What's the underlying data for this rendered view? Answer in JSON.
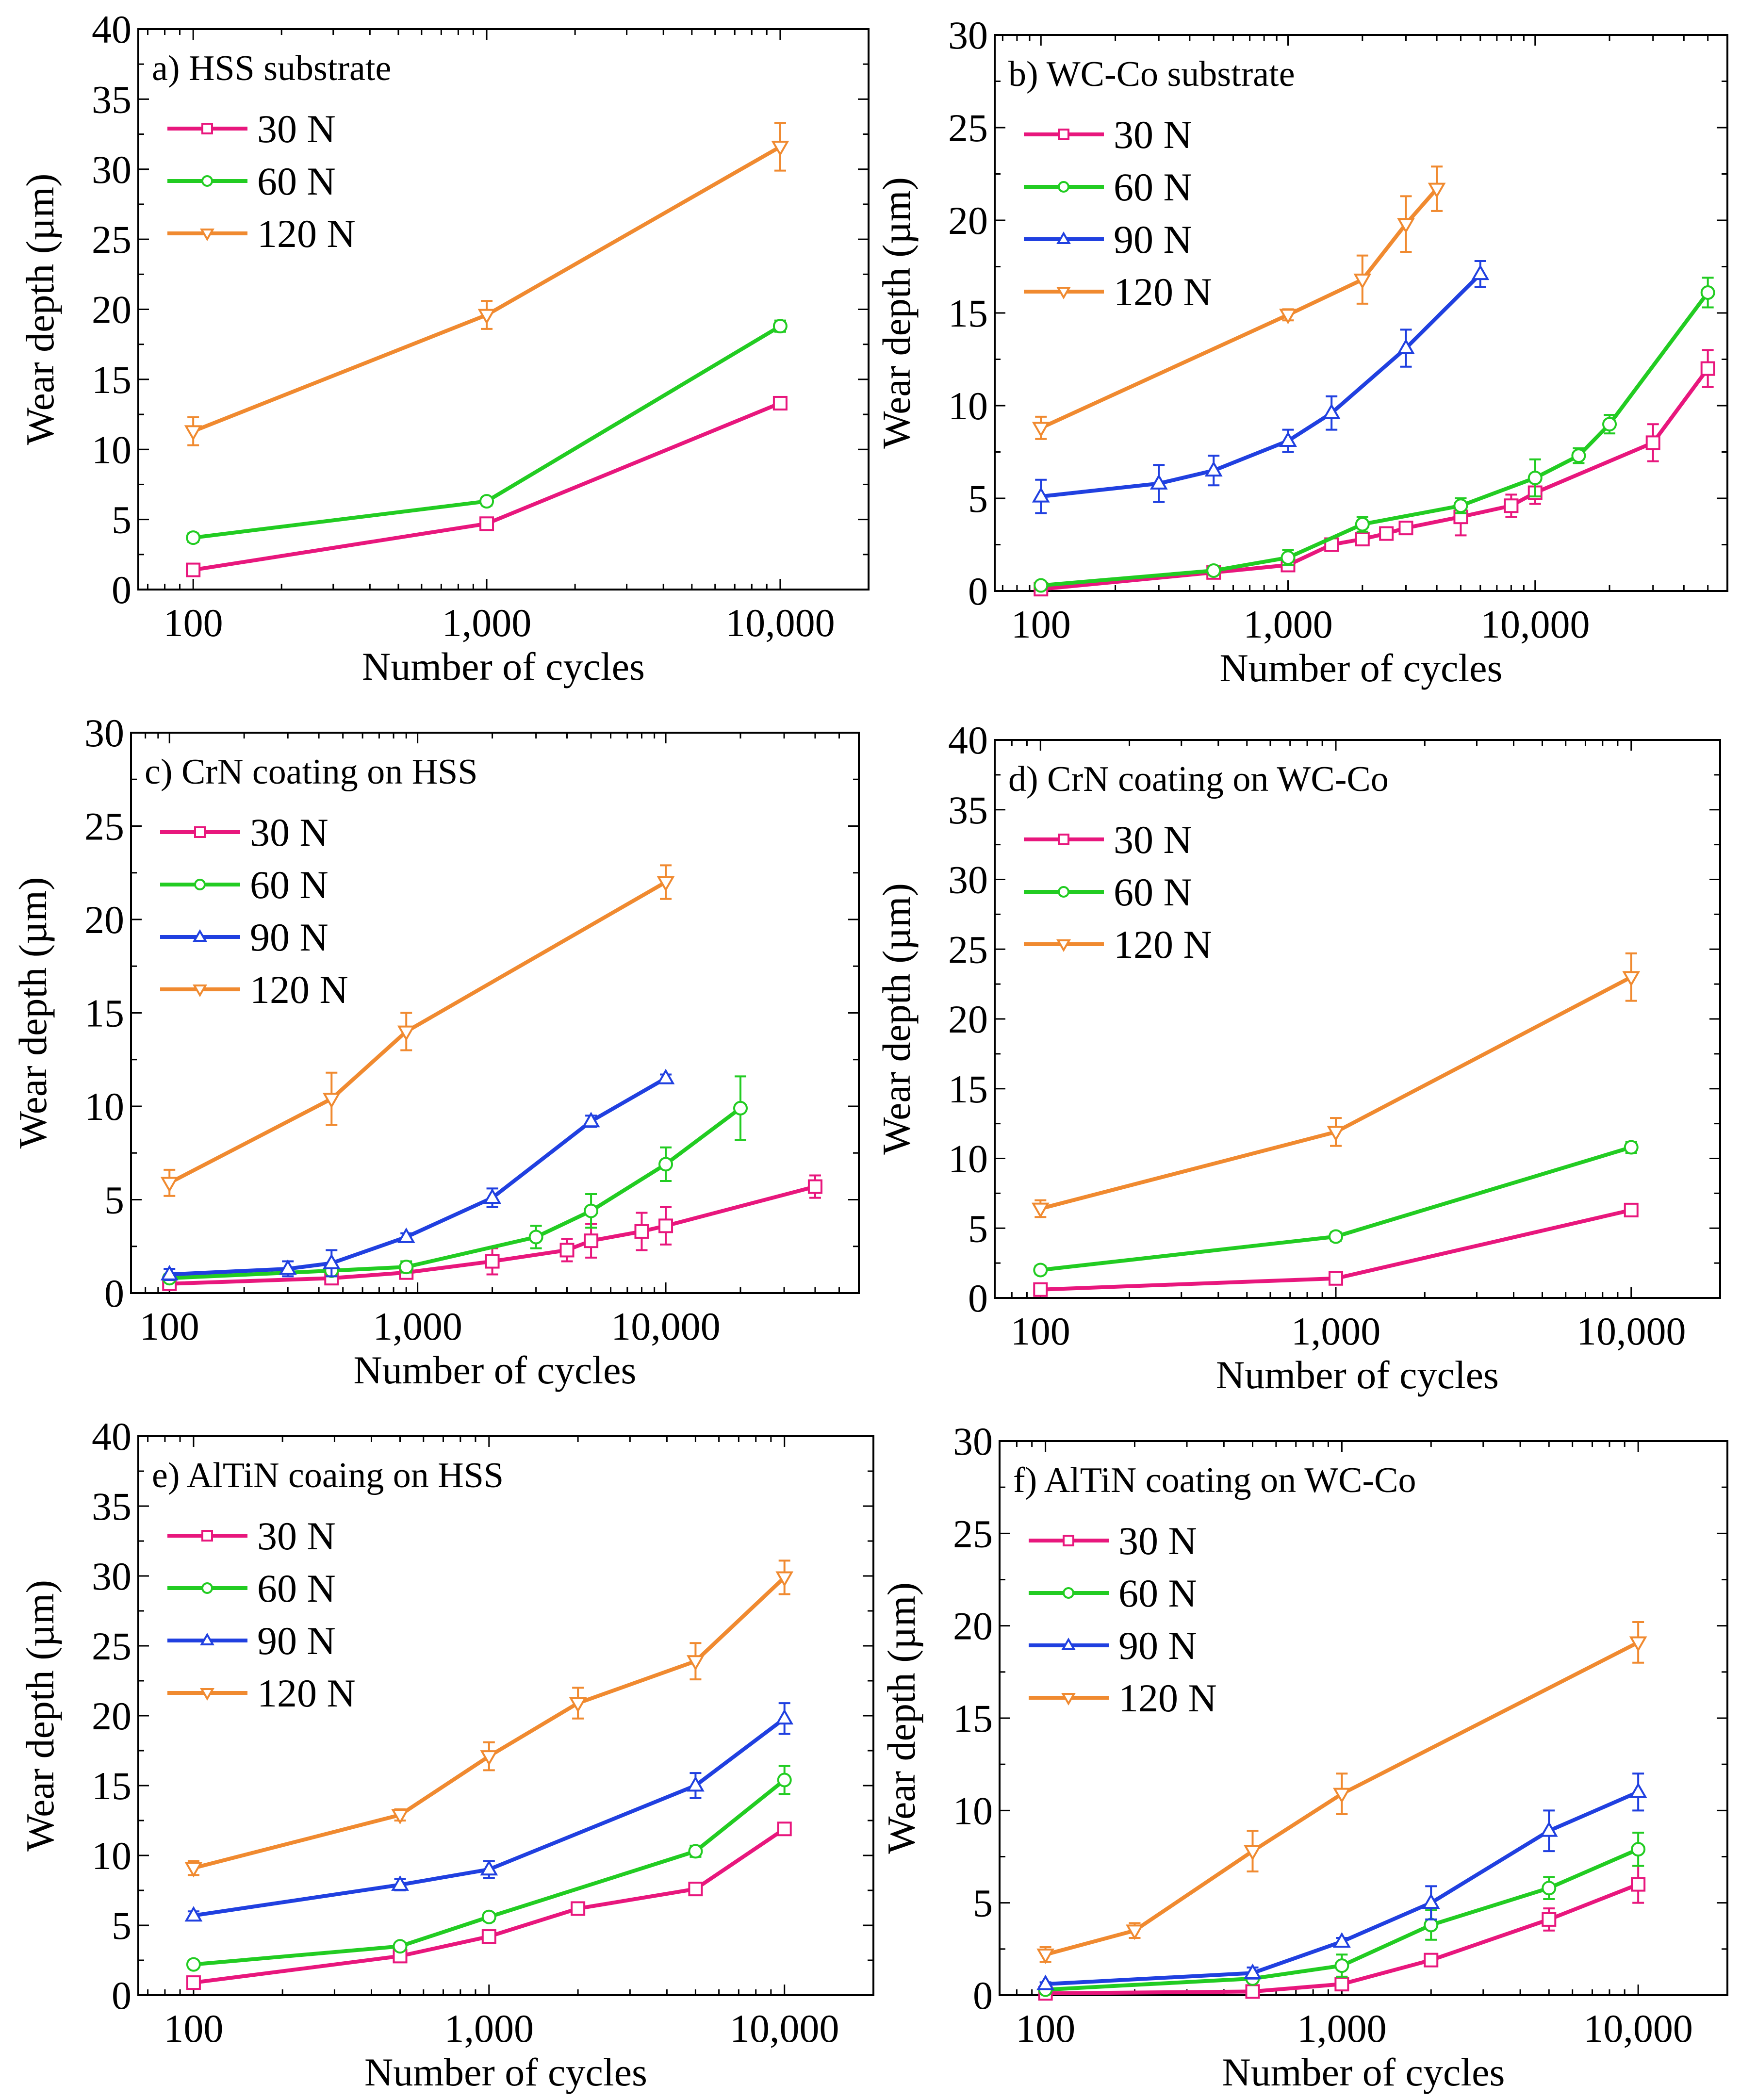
{
  "chart_data": [
    {
      "type": "line",
      "title": "a) HSS substrate",
      "xlabel": "Number of cycles",
      "ylabel": "Wear depth (µm)",
      "xscale": "log",
      "xlim": [
        65,
        20000
      ],
      "ylim": [
        0,
        40
      ],
      "xticks": [
        100,
        1000,
        10000
      ],
      "xtick_labels": [
        "100",
        "1,000",
        "10,000"
      ],
      "yticks": [
        0,
        5,
        10,
        15,
        20,
        25,
        30,
        35,
        40
      ],
      "legend_position": "top-left",
      "series": [
        {
          "name": "30 N",
          "color": "#e8177d",
          "marker": "square",
          "x": [
            100,
            1000,
            10000
          ],
          "y": [
            1.4,
            4.7,
            13.3
          ],
          "err": [
            0.3,
            0.3,
            0.3
          ]
        },
        {
          "name": "60 N",
          "color": "#22cc22",
          "marker": "circle",
          "x": [
            100,
            1000,
            10000
          ],
          "y": [
            3.7,
            6.3,
            18.8
          ],
          "err": [
            0.3,
            0.3,
            0.4
          ]
        },
        {
          "name": "120 N",
          "color": "#f08a30",
          "marker": "triangle-down",
          "x": [
            100,
            1000,
            10000
          ],
          "y": [
            11.3,
            19.6,
            31.6
          ],
          "err": [
            1.0,
            1.0,
            1.7
          ]
        }
      ]
    },
    {
      "type": "line",
      "title": "b) WC-Co substrate",
      "xlabel": "Number of cycles",
      "ylabel": "Wear depth (µm)",
      "xscale": "log",
      "xlim": [
        65,
        60000
      ],
      "ylim": [
        0,
        30
      ],
      "xticks": [
        100,
        1000,
        10000
      ],
      "xtick_labels": [
        "100",
        "1,000",
        "10,000"
      ],
      "yticks": [
        0,
        5,
        10,
        15,
        20,
        25,
        30
      ],
      "legend_position": "top-left",
      "series": [
        {
          "name": "30 N",
          "color": "#e8177d",
          "marker": "square",
          "x": [
            100,
            500,
            1000,
            1500,
            2000,
            2500,
            3000,
            5000,
            8000,
            10000,
            30000,
            50000
          ],
          "y": [
            0.1,
            1.0,
            1.4,
            2.5,
            2.8,
            3.1,
            3.4,
            4.0,
            4.6,
            5.3,
            8.0,
            12.0
          ],
          "err": [
            0.1,
            0.1,
            0.2,
            0.2,
            0.2,
            0.2,
            0.2,
            1.0,
            0.6,
            0.6,
            1.0,
            1.0
          ]
        },
        {
          "name": "60 N",
          "color": "#22cc22",
          "marker": "circle",
          "x": [
            100,
            500,
            1000,
            2000,
            5000,
            10000,
            15000,
            20000,
            50000
          ],
          "y": [
            0.3,
            1.1,
            1.8,
            3.6,
            4.6,
            6.1,
            7.3,
            9.0,
            16.1
          ],
          "err": [
            0.1,
            0.1,
            0.4,
            0.4,
            0.4,
            1.0,
            0.4,
            0.5,
            0.8
          ]
        },
        {
          "name": "90 N",
          "color": "#2040e0",
          "marker": "triangle-up",
          "x": [
            100,
            300,
            500,
            1000,
            1500,
            3000,
            6000
          ],
          "y": [
            5.1,
            5.8,
            6.5,
            8.1,
            9.6,
            13.1,
            17.1
          ],
          "err": [
            0.9,
            1.0,
            0.8,
            0.6,
            0.9,
            1.0,
            0.7
          ]
        },
        {
          "name": "120 N",
          "color": "#f08a30",
          "marker": "triangle-down",
          "x": [
            100,
            1000,
            2000,
            3000,
            4000
          ],
          "y": [
            8.8,
            14.9,
            16.8,
            19.8,
            21.7
          ],
          "err": [
            0.6,
            0.3,
            1.3,
            1.5,
            1.2
          ]
        }
      ]
    },
    {
      "type": "line",
      "title": "c) CrN coating on HSS",
      "xlabel": "Number of cycles",
      "ylabel": "Wear depth (µm)",
      "xscale": "log",
      "xlim": [
        70,
        60000
      ],
      "ylim": [
        0,
        30
      ],
      "xticks": [
        100,
        1000,
        10000
      ],
      "xtick_labels": [
        "100",
        "1,000",
        "10,000"
      ],
      "yticks": [
        0,
        5,
        10,
        15,
        20,
        25,
        30
      ],
      "legend_position": "top-left",
      "series": [
        {
          "name": "30 N",
          "color": "#e8177d",
          "marker": "square",
          "x": [
            100,
            450,
            900,
            2000,
            4000,
            5000,
            8000,
            10000,
            40000
          ],
          "y": [
            0.5,
            0.8,
            1.1,
            1.7,
            2.3,
            2.8,
            3.3,
            3.6,
            5.7
          ],
          "err": [
            0.2,
            0.3,
            0.3,
            0.7,
            0.6,
            0.9,
            1.0,
            1.0,
            0.6
          ]
        },
        {
          "name": "60 N",
          "color": "#22cc22",
          "marker": "circle",
          "x": [
            100,
            450,
            900,
            3000,
            5000,
            10000,
            20000
          ],
          "y": [
            0.8,
            1.2,
            1.4,
            3.0,
            4.4,
            6.9,
            9.9
          ],
          "err": [
            0.2,
            0.3,
            0.3,
            0.6,
            0.9,
            0.9,
            1.7
          ]
        },
        {
          "name": "90 N",
          "color": "#2040e0",
          "marker": "triangle-up",
          "x": [
            100,
            300,
            450,
            900,
            2000,
            5000,
            10000
          ],
          "y": [
            1.0,
            1.3,
            1.6,
            3.0,
            5.1,
            9.2,
            11.5
          ],
          "err": [
            0.3,
            0.4,
            0.7,
            0.2,
            0.5,
            0.3,
            0.2
          ]
        },
        {
          "name": "120 N",
          "color": "#f08a30",
          "marker": "triangle-down",
          "x": [
            100,
            450,
            900,
            10000
          ],
          "y": [
            5.9,
            10.4,
            14.0,
            22.0
          ],
          "err": [
            0.7,
            1.4,
            1.0,
            0.9
          ]
        }
      ]
    },
    {
      "type": "line",
      "title": "d) CrN coating on WC-Co",
      "xlabel": "Number of cycles",
      "ylabel": "Wear depth (µm)",
      "xscale": "log",
      "xlim": [
        70,
        20000
      ],
      "ylim": [
        0,
        40
      ],
      "xticks": [
        100,
        1000,
        10000
      ],
      "xtick_labels": [
        "100",
        "1,000",
        "10,000"
      ],
      "yticks": [
        0,
        5,
        10,
        15,
        20,
        25,
        30,
        35,
        40
      ],
      "legend_position": "top-left",
      "series": [
        {
          "name": "30 N",
          "color": "#e8177d",
          "marker": "square",
          "x": [
            100,
            1000,
            10000
          ],
          "y": [
            0.6,
            1.4,
            6.3
          ],
          "err": [
            0.2,
            0.2,
            0.4
          ]
        },
        {
          "name": "60 N",
          "color": "#22cc22",
          "marker": "circle",
          "x": [
            100,
            1000,
            10000
          ],
          "y": [
            2.0,
            4.4,
            10.8
          ],
          "err": [
            0.3,
            0.3,
            0.4
          ]
        },
        {
          "name": "120 N",
          "color": "#f08a30",
          "marker": "triangle-down",
          "x": [
            100,
            1000,
            10000
          ],
          "y": [
            6.4,
            11.9,
            23.0
          ],
          "err": [
            0.6,
            1.0,
            1.7
          ]
        }
      ]
    },
    {
      "type": "line",
      "title": "e) AlTiN coaing on HSS",
      "xlabel": "Number of cycles",
      "ylabel": "Wear depth (µm)",
      "xscale": "log",
      "xlim": [
        65,
        20000
      ],
      "ylim": [
        0,
        40
      ],
      "xticks": [
        100,
        1000,
        10000
      ],
      "xtick_labels": [
        "100",
        "1,000",
        "10,000"
      ],
      "yticks": [
        0,
        5,
        10,
        15,
        20,
        25,
        30,
        35,
        40
      ],
      "legend_position": "top-left",
      "series": [
        {
          "name": "30 N",
          "color": "#e8177d",
          "marker": "square",
          "x": [
            100,
            500,
            1000,
            2000,
            5000,
            10000
          ],
          "y": [
            0.9,
            2.8,
            4.2,
            6.2,
            7.6,
            11.9
          ],
          "err": [
            0.2,
            0.2,
            0.3,
            0.2,
            0.3,
            0.4
          ]
        },
        {
          "name": "60 N",
          "color": "#22cc22",
          "marker": "circle",
          "x": [
            100,
            500,
            1000,
            5000,
            10000
          ],
          "y": [
            2.2,
            3.5,
            5.6,
            10.3,
            15.4
          ],
          "err": [
            0.2,
            0.2,
            0.3,
            0.4,
            1.0
          ]
        },
        {
          "name": "90 N",
          "color": "#2040e0",
          "marker": "triangle-up",
          "x": [
            100,
            500,
            1000,
            5000,
            10000
          ],
          "y": [
            5.7,
            7.9,
            9.0,
            15.0,
            19.8
          ],
          "err": [
            0.3,
            0.4,
            0.6,
            0.9,
            1.1
          ]
        },
        {
          "name": "120 N",
          "color": "#f08a30",
          "marker": "triangle-down",
          "x": [
            100,
            500,
            1000,
            2000,
            5000,
            10000
          ],
          "y": [
            9.1,
            12.9,
            17.1,
            20.9,
            23.9,
            29.9
          ],
          "err": [
            0.5,
            0.4,
            1.0,
            1.1,
            1.3,
            1.2
          ]
        }
      ]
    },
    {
      "type": "line",
      "title": "f) AlTiN coating on WC-Co",
      "xlabel": "Number of cycles",
      "ylabel": "Wear depth (µm)",
      "xscale": "log",
      "xlim": [
        70,
        20000
      ],
      "ylim": [
        0,
        30
      ],
      "xticks": [
        100,
        1000,
        10000
      ],
      "xtick_labels": [
        "100",
        "1,000",
        "10,000"
      ],
      "yticks": [
        0,
        5,
        10,
        15,
        20,
        25,
        30
      ],
      "legend_position": "top-left",
      "series": [
        {
          "name": "30 N",
          "color": "#e8177d",
          "marker": "square",
          "x": [
            100,
            500,
            1000,
            2000,
            5000,
            10000
          ],
          "y": [
            0.1,
            0.2,
            0.6,
            1.9,
            4.1,
            6.0
          ],
          "err": [
            0.1,
            0.1,
            0.2,
            0.3,
            0.6,
            1.0
          ]
        },
        {
          "name": "60 N",
          "color": "#22cc22",
          "marker": "circle",
          "x": [
            100,
            500,
            1000,
            2000,
            5000,
            10000
          ],
          "y": [
            0.3,
            0.9,
            1.6,
            3.8,
            5.8,
            7.9
          ],
          "err": [
            0.1,
            0.2,
            0.6,
            0.8,
            0.6,
            0.9
          ]
        },
        {
          "name": "90 N",
          "color": "#2040e0",
          "marker": "triangle-up",
          "x": [
            100,
            500,
            1000,
            2000,
            5000,
            10000
          ],
          "y": [
            0.6,
            1.2,
            2.9,
            5.0,
            8.9,
            11.0
          ],
          "err": [
            0.1,
            0.3,
            0.2,
            0.9,
            1.1,
            1.0
          ]
        },
        {
          "name": "120 N",
          "color": "#f08a30",
          "marker": "triangle-down",
          "x": [
            100,
            200,
            500,
            1000,
            10000
          ],
          "y": [
            2.2,
            3.5,
            7.8,
            10.9,
            19.1
          ],
          "err": [
            0.4,
            0.4,
            1.1,
            1.1,
            1.1
          ]
        }
      ]
    }
  ]
}
